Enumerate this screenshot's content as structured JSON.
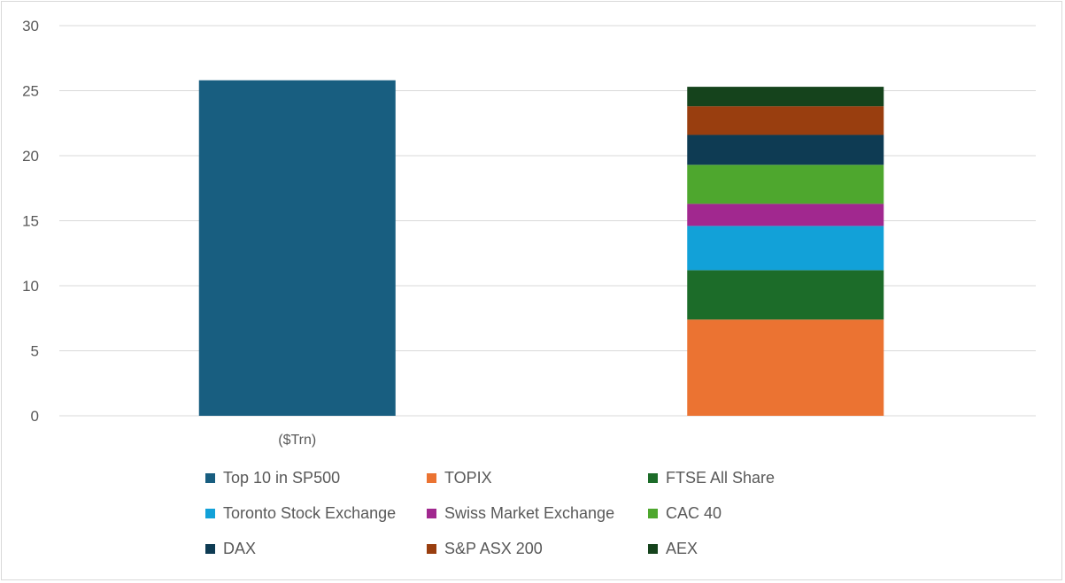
{
  "chart_data": {
    "type": "bar",
    "stacked": true,
    "categories": [
      "($Trn)",
      ""
    ],
    "ylim": [
      0,
      30
    ],
    "yticks": [
      0,
      5,
      10,
      15,
      20,
      25,
      30
    ],
    "grid": true,
    "legend_position": "bottom",
    "series": [
      {
        "name": "Top 10 in SP500",
        "color": "#185e80",
        "values": [
          25.8,
          0
        ]
      },
      {
        "name": "TOPIX",
        "color": "#eb7332",
        "values": [
          0,
          7.4
        ]
      },
      {
        "name": "FTSE All Share",
        "color": "#1c6c29",
        "values": [
          0,
          3.8
        ]
      },
      {
        "name": "Toronto Stock Exchange",
        "color": "#12a1d8",
        "values": [
          0,
          3.4
        ]
      },
      {
        "name": "Swiss Market Exchange",
        "color": "#a1288f",
        "values": [
          0,
          1.7
        ]
      },
      {
        "name": "CAC 40",
        "color": "#4ea72e",
        "values": [
          0,
          3.0
        ]
      },
      {
        "name": "DAX",
        "color": "#0e3b53",
        "values": [
          0,
          2.3
        ]
      },
      {
        "name": "S&P ASX 200",
        "color": "#993e0f",
        "values": [
          0,
          2.2
        ]
      },
      {
        "name": "AEX",
        "color": "#15431c",
        "values": [
          0,
          1.5
        ]
      }
    ]
  }
}
